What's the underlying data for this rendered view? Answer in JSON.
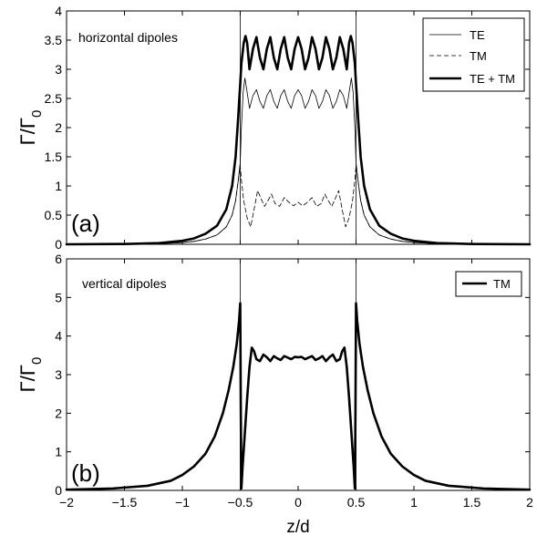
{
  "figure": {
    "xlabel": "z/d"
  },
  "chart_data": [
    {
      "type": "line",
      "panel_label": "(a)",
      "annotation": "horizontal dipoles",
      "ylabel_main": "Γ/Γ",
      "ylabel_sub": "0",
      "xlim": [
        -2,
        2
      ],
      "ylim": [
        0,
        4
      ],
      "x_ticks": [
        "−2",
        "−1.5",
        "−1",
        "−0.5",
        "0",
        "0.5",
        "1",
        "1.5",
        "2"
      ],
      "y_ticks": [
        "0",
        "0.5",
        "1",
        "1.5",
        "2",
        "2.5",
        "3",
        "3.5",
        "4"
      ],
      "vertical_lines_x": [
        -0.5,
        0.5
      ],
      "grid": false,
      "legend_position": "top-right",
      "series": [
        {
          "name": "TE",
          "style": "thin-solid",
          "x": [
            -2,
            -1.5,
            -1.2,
            -1,
            -0.9,
            -0.8,
            -0.7,
            -0.62,
            -0.57,
            -0.54,
            -0.52,
            -0.5,
            -0.49,
            -0.475,
            -0.46,
            -0.44,
            -0.42,
            -0.39,
            -0.36,
            -0.33,
            -0.3,
            -0.27,
            -0.24,
            -0.21,
            -0.18,
            -0.15,
            -0.12,
            -0.09,
            -0.06,
            -0.03,
            0,
            0.03,
            0.06,
            0.09,
            0.12,
            0.15,
            0.18,
            0.21,
            0.24,
            0.27,
            0.3,
            0.33,
            0.36,
            0.39,
            0.42,
            0.44,
            0.46,
            0.475,
            0.49,
            0.5,
            0.52,
            0.54,
            0.57,
            0.62,
            0.7,
            0.8,
            0.9,
            1,
            1.2,
            1.5,
            2
          ],
          "y": [
            0,
            0.002,
            0.01,
            0.03,
            0.05,
            0.09,
            0.16,
            0.3,
            0.5,
            0.75,
            1.05,
            1.4,
            2.0,
            2.6,
            2.85,
            2.6,
            2.33,
            2.55,
            2.65,
            2.45,
            2.33,
            2.55,
            2.65,
            2.45,
            2.33,
            2.55,
            2.65,
            2.45,
            2.33,
            2.55,
            2.65,
            2.55,
            2.33,
            2.45,
            2.65,
            2.55,
            2.33,
            2.45,
            2.65,
            2.55,
            2.33,
            2.45,
            2.65,
            2.55,
            2.33,
            2.6,
            2.85,
            2.6,
            2.0,
            1.4,
            1.05,
            0.75,
            0.5,
            0.3,
            0.16,
            0.09,
            0.05,
            0.03,
            0.01,
            0.002,
            0
          ]
        },
        {
          "name": "TM",
          "style": "dashed",
          "x": [
            -2,
            -1.5,
            -1.2,
            -1,
            -0.9,
            -0.8,
            -0.7,
            -0.62,
            -0.57,
            -0.54,
            -0.52,
            -0.5,
            -0.49,
            -0.47,
            -0.44,
            -0.41,
            -0.38,
            -0.35,
            -0.32,
            -0.29,
            -0.26,
            -0.23,
            -0.2,
            -0.16,
            -0.12,
            -0.08,
            -0.04,
            0,
            0.04,
            0.08,
            0.12,
            0.16,
            0.2,
            0.23,
            0.26,
            0.29,
            0.32,
            0.35,
            0.38,
            0.41,
            0.44,
            0.47,
            0.49,
            0.5,
            0.52,
            0.54,
            0.57,
            0.62,
            0.7,
            0.8,
            0.9,
            1,
            1.2,
            1.5,
            2
          ],
          "y": [
            0,
            0.002,
            0.01,
            0.03,
            0.05,
            0.09,
            0.16,
            0.3,
            0.5,
            0.75,
            1.05,
            1.35,
            1.1,
            0.75,
            0.45,
            0.3,
            0.6,
            0.92,
            0.78,
            0.65,
            0.75,
            0.86,
            0.7,
            0.65,
            0.8,
            0.72,
            0.66,
            0.72,
            0.66,
            0.72,
            0.8,
            0.65,
            0.7,
            0.86,
            0.75,
            0.65,
            0.78,
            0.92,
            0.6,
            0.3,
            0.45,
            0.75,
            1.1,
            1.35,
            1.05,
            0.75,
            0.5,
            0.3,
            0.16,
            0.09,
            0.05,
            0.03,
            0.01,
            0.002,
            0
          ]
        },
        {
          "name": "TE + TM",
          "style": "thick-solid",
          "x": [
            -2,
            -1.5,
            -1.2,
            -1,
            -0.9,
            -0.8,
            -0.7,
            -0.62,
            -0.57,
            -0.54,
            -0.52,
            -0.5,
            -0.49,
            -0.47,
            -0.455,
            -0.44,
            -0.42,
            -0.39,
            -0.36,
            -0.33,
            -0.3,
            -0.27,
            -0.24,
            -0.21,
            -0.18,
            -0.15,
            -0.12,
            -0.09,
            -0.06,
            -0.03,
            0,
            0.03,
            0.06,
            0.09,
            0.12,
            0.15,
            0.18,
            0.21,
            0.24,
            0.27,
            0.3,
            0.33,
            0.36,
            0.39,
            0.42,
            0.44,
            0.455,
            0.47,
            0.49,
            0.5,
            0.52,
            0.54,
            0.57,
            0.62,
            0.7,
            0.8,
            0.9,
            1,
            1.2,
            1.5,
            2
          ],
          "y": [
            0,
            0.005,
            0.02,
            0.06,
            0.1,
            0.18,
            0.32,
            0.6,
            1.0,
            1.5,
            2.1,
            2.75,
            3.1,
            3.45,
            3.57,
            3.45,
            3.0,
            3.35,
            3.55,
            3.2,
            3.0,
            3.35,
            3.55,
            3.2,
            3.0,
            3.35,
            3.55,
            3.2,
            3.0,
            3.35,
            3.55,
            3.35,
            3.0,
            3.2,
            3.55,
            3.35,
            3.0,
            3.2,
            3.55,
            3.35,
            3.0,
            3.2,
            3.55,
            3.35,
            3.0,
            3.45,
            3.57,
            3.45,
            3.1,
            2.75,
            2.1,
            1.5,
            1.0,
            0.6,
            0.32,
            0.18,
            0.1,
            0.06,
            0.02,
            0.005,
            0
          ]
        }
      ]
    },
    {
      "type": "line",
      "panel_label": "(b)",
      "annotation": "vertical dipoles",
      "ylabel_main": "Γ/Γ",
      "ylabel_sub": "0",
      "xlabel": "z/d",
      "xlim": [
        -2,
        2
      ],
      "ylim": [
        0,
        6
      ],
      "x_ticks": [
        "−2",
        "−1.5",
        "−1",
        "−0.5",
        "0",
        "0.5",
        "1",
        "1.5",
        "2"
      ],
      "y_ticks": [
        "0",
        "1",
        "2",
        "3",
        "4",
        "5",
        "6"
      ],
      "vertical_lines_x": [
        -0.5,
        0.5
      ],
      "grid": false,
      "legend_position": "top-right",
      "series": [
        {
          "name": "TM",
          "style": "thick-solid",
          "x": [
            -2,
            -1.6,
            -1.3,
            -1.1,
            -1,
            -0.9,
            -0.8,
            -0.72,
            -0.65,
            -0.6,
            -0.56,
            -0.53,
            -0.51,
            -0.5,
            -0.495,
            -0.49,
            -0.48,
            -0.46,
            -0.44,
            -0.42,
            -0.4,
            -0.38,
            -0.36,
            -0.33,
            -0.3,
            -0.27,
            -0.24,
            -0.21,
            -0.18,
            -0.15,
            -0.12,
            -0.09,
            -0.06,
            -0.03,
            0,
            0.03,
            0.06,
            0.09,
            0.12,
            0.15,
            0.18,
            0.21,
            0.24,
            0.27,
            0.3,
            0.33,
            0.36,
            0.38,
            0.4,
            0.42,
            0.44,
            0.46,
            0.48,
            0.49,
            0.495,
            0.5,
            0.51,
            0.53,
            0.56,
            0.6,
            0.65,
            0.72,
            0.8,
            0.9,
            1,
            1.1,
            1.3,
            1.6,
            2
          ],
          "y": [
            0.02,
            0.05,
            0.12,
            0.25,
            0.4,
            0.62,
            0.95,
            1.4,
            2.0,
            2.6,
            3.2,
            3.8,
            4.4,
            4.85,
            2.0,
            0.05,
            0.6,
            1.5,
            2.4,
            3.2,
            3.7,
            3.6,
            3.4,
            3.35,
            3.52,
            3.45,
            3.35,
            3.48,
            3.42,
            3.38,
            3.48,
            3.44,
            3.4,
            3.46,
            3.45,
            3.46,
            3.4,
            3.44,
            3.48,
            3.38,
            3.42,
            3.48,
            3.35,
            3.45,
            3.52,
            3.35,
            3.4,
            3.6,
            3.7,
            3.2,
            2.4,
            1.5,
            0.6,
            0.05,
            2.0,
            4.85,
            4.4,
            3.8,
            3.2,
            2.6,
            2.0,
            1.4,
            0.95,
            0.62,
            0.4,
            0.25,
            0.12,
            0.05,
            0.02
          ]
        }
      ]
    }
  ]
}
